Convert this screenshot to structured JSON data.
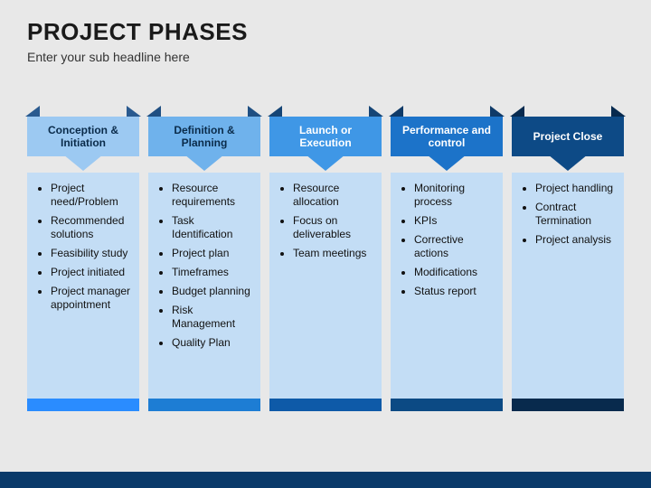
{
  "header": {
    "title": "PROJECT PHASES",
    "subtitle": "Enter your sub headline here"
  },
  "slide": {
    "background_color": "#e8e8e8",
    "bottom_strip_color": "#0a3a6a",
    "column_body_color": "#c3ddf5",
    "body_text_color": "#111111",
    "body_fontsize": 12,
    "title_fontsize": 26,
    "subtitle_fontsize": 14
  },
  "phases": [
    {
      "title": "Conception & Initiation",
      "header_bg": "#9cc9f2",
      "header_text": "#0a2b4a",
      "arrow_color": "#9cc9f2",
      "ear_color": "#2a5a8f",
      "footer_color": "#2a8cff",
      "items": [
        "Project need/Problem",
        "Recommended solutions",
        "Feasibility study",
        "Project initiated",
        "Project manager appointment"
      ]
    },
    {
      "title": "Definition & Planning",
      "header_bg": "#6fb2ec",
      "header_text": "#0a2b4a",
      "arrow_color": "#6fb2ec",
      "ear_color": "#1f4f82",
      "footer_color": "#1d7dd4",
      "items": [
        "Resource requirements",
        "Task Identification",
        "Project plan",
        "Timeframes",
        "Budget planning",
        "Risk Management",
        "Quality Plan"
      ]
    },
    {
      "title": "Launch or Execution",
      "header_bg": "#3f97e6",
      "header_text": "#ffffff",
      "arrow_color": "#3f97e6",
      "ear_color": "#154576",
      "footer_color": "#0e5aa8",
      "items": [
        "Resource allocation",
        "Focus on deliverables",
        "Team meetings"
      ]
    },
    {
      "title": "Performance and control",
      "header_bg": "#1c73c9",
      "header_text": "#ffffff",
      "arrow_color": "#1c73c9",
      "ear_color": "#0f3a68",
      "footer_color": "#0c4a84",
      "items": [
        "Monitoring process",
        "KPIs",
        "Corrective actions",
        "Modifications",
        "Status report"
      ]
    },
    {
      "title": "Project Close",
      "header_bg": "#0d4a86",
      "header_text": "#ffffff",
      "arrow_color": "#0d4a86",
      "ear_color": "#072a4f",
      "footer_color": "#082a4d",
      "items": [
        "Project handling",
        "Contract Termination",
        "Project analysis"
      ]
    }
  ]
}
